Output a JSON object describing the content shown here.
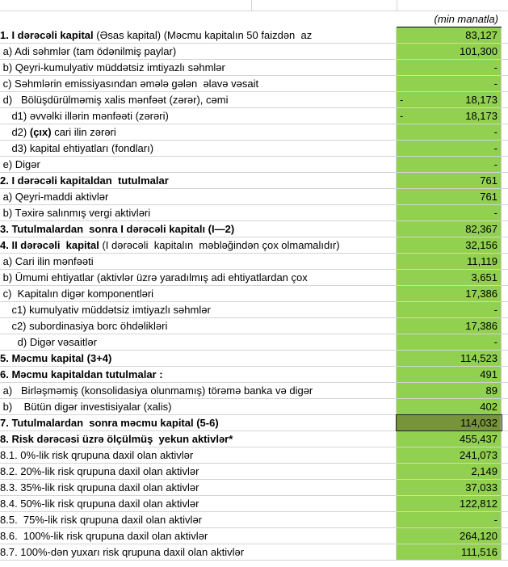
{
  "table": {
    "unit": "(min manatla)",
    "rows": [
      {
        "label": [
          {
            "text": "1. I dərəcəli kapital",
            "bold": true
          },
          {
            "text": " (Əsas kapital) (Məcmu kapitalın 50 faizdən  az",
            "bold": false
          }
        ],
        "value": "83,127"
      },
      {
        "label": [
          {
            "text": " a) Adi səhmlər (tam ödənilmiş paylar)",
            "bold": false
          }
        ],
        "value": "101,300"
      },
      {
        "label": [
          {
            "text": " b) Qeyri-kumulyativ müddətsiz imtiyazlı səhmlər",
            "bold": false
          }
        ],
        "value": "-"
      },
      {
        "label": [
          {
            "text": " c) Səhmlərin emissiyasından əmələ gələn  əlavə vəsait",
            "bold": false
          }
        ],
        "value": "-"
      },
      {
        "label": [
          {
            "text": " d)   Bölüşdürülməmiş xalis mənfəət (zərər), cəmi",
            "bold": false
          }
        ],
        "sign": "-",
        "value": "18,173"
      },
      {
        "label": [
          {
            "text": "    d1) əvvəlki illərin mənfəəti (zərəri)",
            "bold": false
          }
        ],
        "sign": "-",
        "value": "18,173"
      },
      {
        "label": [
          {
            "text": "    d2) ",
            "bold": false
          },
          {
            "text": "(çıx)",
            "bold": true
          },
          {
            "text": " cari ilin zərəri",
            "bold": false
          }
        ],
        "value": "-"
      },
      {
        "label": [
          {
            "text": "    d3) kapital ehtiyatları (fondları)",
            "bold": false
          }
        ],
        "value": "-"
      },
      {
        "label": [
          {
            "text": " e) Digər",
            "bold": false
          }
        ],
        "value": "-"
      },
      {
        "label": [
          {
            "text": "2. I dərəcəli kapitaldan  tutulmalar",
            "bold": true
          }
        ],
        "value": "761"
      },
      {
        "label": [
          {
            "text": " a) Qeyri-maddi aktivlər",
            "bold": false
          }
        ],
        "value": "761"
      },
      {
        "label": [
          {
            "text": " b) Təxirə salınmış vergi aktivləri",
            "bold": false
          }
        ],
        "value": "-"
      },
      {
        "label": [
          {
            "text": "3. Tutulmalardan  sonra I dərəcəli kapitalı (I—2)",
            "bold": true
          }
        ],
        "value": "82,367"
      },
      {
        "label": [
          {
            "text": "4. II dərəcəli  kapital",
            "bold": true
          },
          {
            "text": " (I dərəcəli  kapitalın  məbləğindən çox olmamalıdır)",
            "bold": false
          }
        ],
        "value": "32,156"
      },
      {
        "label": [
          {
            "text": " a) Cari ilin mənfəəti",
            "bold": false
          }
        ],
        "value": "11,119"
      },
      {
        "label": [
          {
            "text": " b) Ümumi ehtiyatlar (aktivlər üzrə yaradılmış adi ehtiyatlardan çox",
            "bold": false
          }
        ],
        "value": "3,651"
      },
      {
        "label": [
          {
            "text": " c)  Kapitalın digər komponentləri",
            "bold": false
          }
        ],
        "value": "17,386"
      },
      {
        "label": [
          {
            "text": "    c1) kumulyativ müddətsiz imtiyazlı səhmlər",
            "bold": false
          }
        ],
        "value": "-"
      },
      {
        "label": [
          {
            "text": "    c2) subordinasiya borc öhdəlikləri",
            "bold": false
          }
        ],
        "value": "17,386"
      },
      {
        "label": [
          {
            "text": "      d) Digər vəsaitlər",
            "bold": false
          }
        ],
        "value": "-"
      },
      {
        "label": [
          {
            "text": "5. Məcmu kapital (3+4)",
            "bold": true
          }
        ],
        "value": "114,523"
      },
      {
        "label": [
          {
            "text": "6. Məcmu kapitaldan tutulmalar :",
            "bold": true
          }
        ],
        "value": "491"
      },
      {
        "label": [
          {
            "text": " a)   Birləşməmiş (konsolidasiya olunmamış) törəmə banka və digər",
            "bold": false
          }
        ],
        "value": "89"
      },
      {
        "label": [
          {
            "text": " b)    Bütün digər investisiyalar (xalis)",
            "bold": false
          }
        ],
        "value": "402"
      },
      {
        "label": [
          {
            "text": "7. Tutulmalardan  sonra məcmu kapital (5-6)",
            "bold": true
          }
        ],
        "value": "114,032",
        "highlight": true
      },
      {
        "label": [
          {
            "text": "8. Risk dərəcəsi üzrə ölçülmüş  yekun aktivlər*",
            "bold": true
          }
        ],
        "value": "455,437"
      },
      {
        "label": [
          {
            "text": "8.1. 0%-lik risk qrupuna daxil olan aktivlər",
            "bold": false
          }
        ],
        "value": "241,073"
      },
      {
        "label": [
          {
            "text": "8.2. 20%-lik risk qrupuna daxil olan aktivlər",
            "bold": false
          }
        ],
        "value": "2,149"
      },
      {
        "label": [
          {
            "text": "8.3. 35%-lik risk qrupuna daxil olan aktivlər",
            "bold": false
          }
        ],
        "value": "37,033"
      },
      {
        "label": [
          {
            "text": "8.4. 50%-lik risk qrupuna daxil olan aktivlər",
            "bold": false
          }
        ],
        "value": "122,812"
      },
      {
        "label": [
          {
            "text": "8.5.  75%-lik risk qrupuna daxil olan aktivlər",
            "bold": false
          }
        ],
        "value": "-"
      },
      {
        "label": [
          {
            "text": "8.6.  100%-lik risk qrupuna daxil olan aktivlər",
            "bold": false
          }
        ],
        "value": "264,120"
      },
      {
        "label": [
          {
            "text": "8.7. 100%-dən yuxarı risk qrupuna daxil olan aktivlər",
            "bold": false
          }
        ],
        "value": "111,516"
      }
    ]
  }
}
